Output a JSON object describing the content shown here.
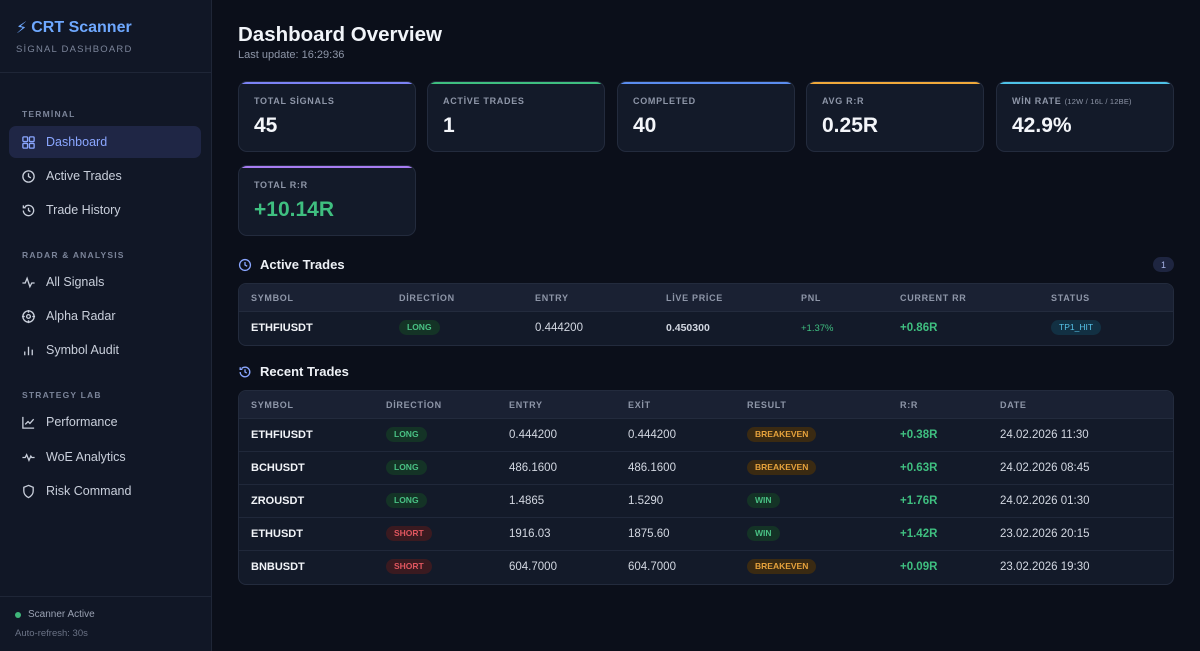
{
  "brand": {
    "title": "CRT Scanner",
    "subtitle": "SİGNAL DASHBOARD"
  },
  "sidebar": {
    "sections": [
      {
        "label": "TERMİNAL",
        "items": [
          {
            "label": "Dashboard",
            "icon": "grid-icon",
            "active": true
          },
          {
            "label": "Active Trades",
            "icon": "clock-icon"
          },
          {
            "label": "Trade History",
            "icon": "history-icon"
          }
        ]
      },
      {
        "label": "RADAR & ANALYSIS",
        "items": [
          {
            "label": "All Signals",
            "icon": "pulse-icon"
          },
          {
            "label": "Alpha Radar",
            "icon": "radar-icon"
          },
          {
            "label": "Symbol Audit",
            "icon": "bar-chart-icon"
          }
        ]
      },
      {
        "label": "STRATEGY LAB",
        "items": [
          {
            "label": "Performance",
            "icon": "line-chart-icon"
          },
          {
            "label": "WoE Analytics",
            "icon": "activity-icon"
          },
          {
            "label": "Risk Command",
            "icon": "shield-icon"
          }
        ]
      }
    ],
    "footer": {
      "status": "Scanner Active",
      "refresh": "Auto-refresh: 30s"
    }
  },
  "header": {
    "title": "Dashboard Overview",
    "subtitle": "Last update: 16:29:36"
  },
  "stats": [
    {
      "label": "TOTAL SİGNALS",
      "note": "",
      "value": "45",
      "accent": "#7c83f5"
    },
    {
      "label": "ACTİVE TRADES",
      "note": "",
      "value": "1",
      "accent": "#3fbf80"
    },
    {
      "label": "COMPLETED",
      "note": "",
      "value": "40",
      "accent": "#5b8def"
    },
    {
      "label": "AVG R:R",
      "note": "",
      "value": "0.25R",
      "accent": "#f0a93b"
    },
    {
      "label": "WİN RATE",
      "note": "(12W / 16L / 12BE)",
      "value": "42.9%",
      "accent": "#4fc3e8"
    },
    {
      "label": "TOTAL R:R",
      "note": "",
      "value": "+10.14R",
      "accent": "#a77cf2"
    }
  ],
  "active_trades": {
    "title": "Active Trades",
    "count": "1",
    "columns": [
      "SYMBOL",
      "DİRECTİON",
      "ENTRY",
      "LİVE PRİCE",
      "PNL",
      "CURRENT RR",
      "STATUS"
    ],
    "rows": [
      {
        "symbol": "ETHFIUSDT",
        "direction": "LONG",
        "entry": "0.444200",
        "live": "0.450300",
        "pnl": "+1.37%",
        "rr": "+0.86R",
        "status": "TP1_HIT"
      }
    ]
  },
  "recent_trades": {
    "title": "Recent Trades",
    "columns": [
      "SYMBOL",
      "DİRECTİON",
      "ENTRY",
      "EXİT",
      "RESULT",
      "R:R",
      "DATE"
    ],
    "rows": [
      {
        "symbol": "ETHFIUSDT",
        "direction": "LONG",
        "entry": "0.444200",
        "exit": "0.444200",
        "result": "BREAKEVEN",
        "rr": "+0.38R",
        "date": "24.02.2026 11:30"
      },
      {
        "symbol": "BCHUSDT",
        "direction": "LONG",
        "entry": "486.1600",
        "exit": "486.1600",
        "result": "BREAKEVEN",
        "rr": "+0.63R",
        "date": "24.02.2026 08:45"
      },
      {
        "symbol": "ZROUSDT",
        "direction": "LONG",
        "entry": "1.4865",
        "exit": "1.5290",
        "result": "WIN",
        "rr": "+1.76R",
        "date": "24.02.2026 01:30"
      },
      {
        "symbol": "ETHUSDT",
        "direction": "SHORT",
        "entry": "1916.03",
        "exit": "1875.60",
        "result": "WIN",
        "rr": "+1.42R",
        "date": "23.02.2026 20:15"
      },
      {
        "symbol": "BNBUSDT",
        "direction": "SHORT",
        "entry": "604.7000",
        "exit": "604.7000",
        "result": "BREAKEVEN",
        "rr": "+0.09R",
        "date": "23.02.2026 19:30"
      }
    ]
  }
}
